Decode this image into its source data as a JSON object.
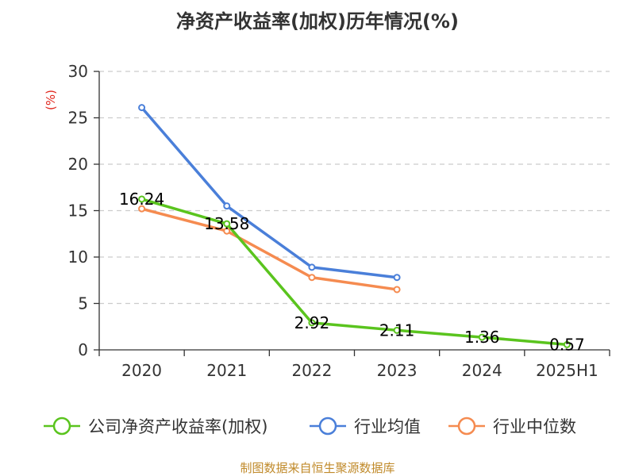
{
  "chart_data": {
    "type": "line",
    "title": "净资产收益率(加权)历年情况(%)",
    "ylabel": "(%)",
    "xlabel": "",
    "categories": [
      "2020",
      "2021",
      "2022",
      "2023",
      "2024",
      "2025H1"
    ],
    "ylim": [
      0,
      30
    ],
    "yticks": [
      0,
      5,
      10,
      15,
      20,
      25,
      30
    ],
    "grid": true,
    "legend_position": "bottom",
    "series": [
      {
        "name": "公司净资产收益率(加权)",
        "color": "#5ac41e",
        "values": [
          16.24,
          13.58,
          2.92,
          2.11,
          1.36,
          0.57
        ],
        "labels": [
          "16.24",
          "13.58",
          "2.92",
          "2.11",
          "1.36",
          "0.57"
        ]
      },
      {
        "name": "行业均值",
        "color": "#4a7fd9",
        "values": [
          26.1,
          15.5,
          8.9,
          7.8,
          null,
          null
        ]
      },
      {
        "name": "行业中位数",
        "color": "#f58b50",
        "values": [
          15.2,
          12.8,
          7.8,
          6.5,
          null,
          null
        ]
      }
    ]
  },
  "source": "制图数据来自恒生聚源数据库"
}
